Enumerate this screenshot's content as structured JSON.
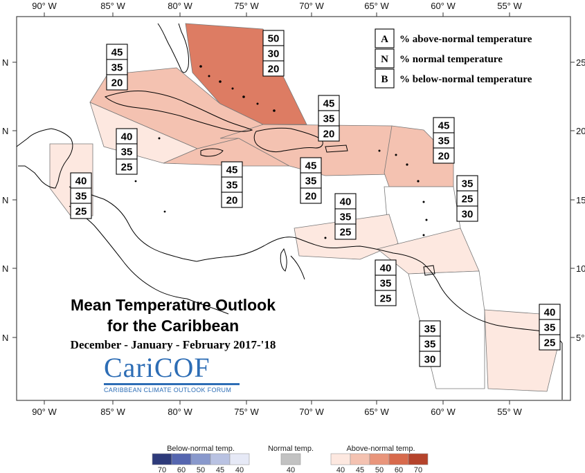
{
  "title": {
    "line1": "Mean Temperature Outlook",
    "line2": "for the Caribbean",
    "period": "December - January - February 2017-'18"
  },
  "logo": {
    "wordmark": "CariCOF",
    "subtitle": "CARIBBEAN CLIMATE OUTLOOK FORUM"
  },
  "axes": {
    "longitude_labels": [
      "90° W",
      "85° W",
      "80° W",
      "75° W",
      "70° W",
      "65° W",
      "60° W",
      "55° W"
    ],
    "latitude_labels_left": [
      "N",
      "N",
      "N",
      "N",
      "N"
    ],
    "latitude_labels_right": [
      "25",
      "20",
      "15",
      "10",
      "5°"
    ]
  },
  "key": [
    {
      "letter": "A",
      "text": "% above-normal temperature"
    },
    {
      "letter": "N",
      "text": "% normal temperature"
    },
    {
      "letter": "B",
      "text": "% below-normal temperature"
    }
  ],
  "regions": [
    {
      "name": "bahamas",
      "fill": "#dd7c63",
      "values": [
        "50",
        "30",
        "20"
      ]
    },
    {
      "name": "cuba",
      "fill": "#f4c2b1",
      "values": [
        "45",
        "35",
        "20"
      ]
    },
    {
      "name": "caribbean-west-of-cuba",
      "fill": "#fde8e0",
      "values": [
        "40",
        "35",
        "25"
      ]
    },
    {
      "name": "belize",
      "fill": "#fde8e0",
      "values": [
        "40",
        "35",
        "25"
      ]
    },
    {
      "name": "jamaica-cayman",
      "fill": "#f4c2b1",
      "values": [
        "45",
        "35",
        "20"
      ]
    },
    {
      "name": "hispaniola-north",
      "fill": "#f4c2b1",
      "values": [
        "45",
        "35",
        "20"
      ]
    },
    {
      "name": "hispaniola-puerto-rico",
      "fill": "#f4c2b1",
      "values": [
        "45",
        "35",
        "20"
      ]
    },
    {
      "name": "leeward-islands",
      "fill": "#f4c2b1",
      "values": [
        "45",
        "35",
        "20"
      ]
    },
    {
      "name": "windward-islands",
      "fill": "#ffffff",
      "values": [
        "35",
        "25",
        "30"
      ]
    },
    {
      "name": "abc-islands",
      "fill": "#fde8e0",
      "values": [
        "40",
        "35",
        "25"
      ]
    },
    {
      "name": "trinidad-tobago",
      "fill": "#fde8e0",
      "values": [
        "40",
        "35",
        "25"
      ]
    },
    {
      "name": "guyana",
      "fill": "#ffffff",
      "values": [
        "35",
        "35",
        "30"
      ]
    },
    {
      "name": "suriname-french-guiana",
      "fill": "#fde8e0",
      "values": [
        "40",
        "35",
        "25"
      ]
    }
  ],
  "legend": {
    "below": {
      "title": "Below-normal temp.",
      "ticks": [
        "70",
        "60",
        "50",
        "45",
        "40"
      ],
      "colors": [
        "#2d3a7a",
        "#5566b0",
        "#8898cc",
        "#b9c2e2",
        "#e6e9f6"
      ]
    },
    "normal": {
      "title": "Normal temp.",
      "ticks": [
        "40"
      ],
      "colors": [
        "#c2c2c2"
      ]
    },
    "above": {
      "title": "Above-normal temp.",
      "ticks": [
        "40",
        "45",
        "50",
        "60",
        "70"
      ],
      "colors": [
        "#fde8e0",
        "#f4c2b1",
        "#e9957b",
        "#d86a4c",
        "#b5432b"
      ]
    }
  }
}
